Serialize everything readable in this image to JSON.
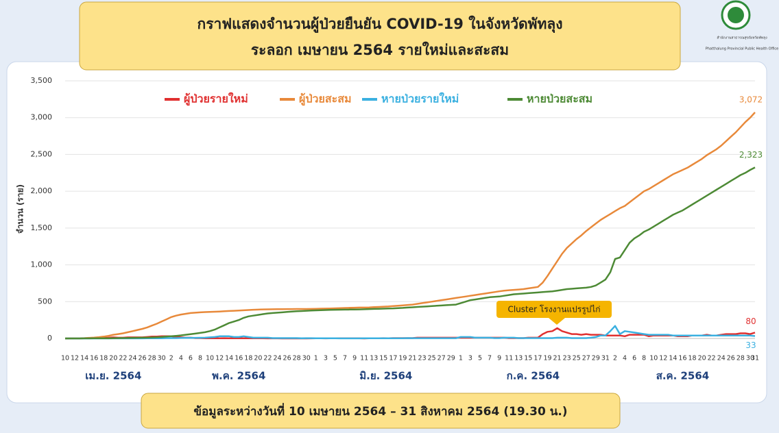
{
  "header": {
    "title_line1": "กราฟแสดงจำนวนผู้ป่วยยืนยัน COVID-19 ในจังหวัดพัทลุง",
    "title_line2": "ระลอก เมษายน 2564 รายใหม่และสะสม",
    "org_th": "สำนักงานสาธารณสุขจังหวัดพัทลุง",
    "org_en": "Phatthalung Provincial Public Health Office"
  },
  "footer": {
    "text": "ข้อมูลระหว่างวันที่ 10 เมษายน 2564 – 31 สิงหาคม 2564 (19.30 น.)"
  },
  "chart_data": {
    "type": "line",
    "ylabel": "จำนวน (ราย)",
    "annotation": "Cluster โรงงานแปรรูปไก่",
    "months": [
      "เม.ย. 2564",
      "พ.ค. 2564",
      "มิ.ย. 2564",
      "ก.ค. 2564",
      "ส.ค. 2564"
    ],
    "categories": [
      "10",
      null,
      "12",
      null,
      "14",
      null,
      "16",
      null,
      "18",
      null,
      "20",
      null,
      "22",
      null,
      "24",
      null,
      "26",
      null,
      "28",
      null,
      "30",
      null,
      "2",
      null,
      "4",
      null,
      "6",
      null,
      "8",
      null,
      "10",
      null,
      "12",
      null,
      "14",
      null,
      "16",
      null,
      "18",
      null,
      "20",
      null,
      "22",
      null,
      "24",
      null,
      "26",
      null,
      "28",
      null,
      "30",
      null,
      "1",
      null,
      "3",
      null,
      "5",
      null,
      "7",
      null,
      "9",
      null,
      "11",
      null,
      "13",
      null,
      "15",
      null,
      "17",
      null,
      "19",
      null,
      "21",
      null,
      "23",
      null,
      "25",
      null,
      "27",
      null,
      "29",
      null,
      "1",
      null,
      "3",
      null,
      "5",
      null,
      "7",
      null,
      "9",
      null,
      "11",
      null,
      "13",
      null,
      "15",
      null,
      "17",
      null,
      "19",
      null,
      "21",
      null,
      "23",
      null,
      "25",
      null,
      "27",
      null,
      "29",
      null,
      "31",
      null,
      "2",
      null,
      "4",
      null,
      "6",
      null,
      "8",
      null,
      "10",
      null,
      "12",
      null,
      "14",
      null,
      "16",
      null,
      "18",
      null,
      "20",
      null,
      "22",
      null,
      "24",
      null,
      "26",
      null,
      "28",
      null,
      "30",
      "31"
    ],
    "ylim": [
      0,
      3500
    ],
    "yticks": [
      0,
      500,
      {
        "value": 1000,
        "label": "1,000"
      },
      {
        "value": 1500,
        "label": "1,500"
      },
      {
        "value": 2000,
        "label": "2,000"
      },
      {
        "value": 2500,
        "label": "2,500"
      },
      {
        "value": 3000,
        "label": "3,000"
      },
      {
        "value": 3500,
        "label": "3,500"
      }
    ],
    "grid": true,
    "legend": "top",
    "series": [
      {
        "name": "ผู้ป่วยรายใหม่",
        "color": "#e03030",
        "values": [
          0,
          1,
          1,
          1,
          2,
          3,
          4,
          6,
          7,
          10,
          15,
          10,
          10,
          15,
          15,
          15,
          15,
          20,
          25,
          25,
          30,
          30,
          30,
          20,
          15,
          10,
          10,
          5,
          5,
          3,
          2,
          3,
          3,
          4,
          3,
          3,
          4,
          3,
          3,
          4,
          2,
          3,
          1,
          1,
          1,
          0,
          1,
          0,
          1,
          0,
          0,
          1,
          2,
          2,
          1,
          2,
          2,
          2,
          2,
          2,
          2,
          2,
          0,
          2,
          3,
          3,
          4,
          3,
          5,
          5,
          5,
          5,
          5,
          10,
          10,
          10,
          10,
          10,
          10,
          10,
          10,
          10,
          10,
          10,
          10,
          10,
          10,
          10,
          10,
          10,
          10,
          10,
          5,
          5,
          5,
          5,
          10,
          10,
          10,
          60,
          90,
          100,
          140,
          100,
          80,
          60,
          60,
          50,
          60,
          50,
          50,
          50,
          40,
          40,
          40,
          40,
          30,
          50,
          50,
          50,
          50,
          30,
          40,
          40,
          40,
          40,
          40,
          30,
          30,
          30,
          40,
          40,
          40,
          50,
          40,
          40,
          50,
          60,
          60,
          60,
          70,
          70,
          60,
          80
        ]
      },
      {
        "name": "ผู้ป่วยสะสม",
        "color": "#e8893a",
        "end_label": "3,072",
        "values": [
          0,
          1,
          2,
          3,
          5,
          8,
          12,
          18,
          25,
          35,
          50,
          60,
          70,
          85,
          100,
          115,
          130,
          150,
          175,
          200,
          230,
          260,
          290,
          310,
          325,
          335,
          345,
          350,
          355,
          358,
          360,
          363,
          366,
          370,
          373,
          376,
          380,
          383,
          386,
          390,
          392,
          395,
          396,
          397,
          398,
          398,
          399,
          399,
          400,
          400,
          400,
          401,
          403,
          405,
          406,
          408,
          410,
          412,
          414,
          416,
          418,
          420,
          420,
          422,
          425,
          428,
          432,
          435,
          440,
          445,
          450,
          455,
          460,
          470,
          480,
          490,
          500,
          510,
          520,
          530,
          540,
          550,
          560,
          570,
          580,
          590,
          600,
          610,
          620,
          630,
          640,
          650,
          655,
          660,
          665,
          670,
          680,
          690,
          700,
          760,
          850,
          950,
          1050,
          1150,
          1230,
          1290,
          1350,
          1400,
          1460,
          1510,
          1560,
          1610,
          1650,
          1690,
          1730,
          1770,
          1800,
          1850,
          1900,
          1950,
          2000,
          2030,
          2070,
          2110,
          2150,
          2190,
          2230,
          2260,
          2290,
          2320,
          2360,
          2400,
          2440,
          2490,
          2530,
          2570,
          2620,
          2680,
          2740,
          2800,
          2870,
          2940,
          3000,
          3072
        ]
      },
      {
        "name": "หายป่วยรายใหม่",
        "color": "#3ab0e0",
        "values": [
          0,
          0,
          0,
          0,
          1,
          0,
          1,
          0,
          1,
          0,
          1,
          1,
          1,
          1,
          1,
          1,
          1,
          2,
          2,
          3,
          3,
          5,
          5,
          5,
          7,
          8,
          8,
          8,
          9,
          10,
          15,
          20,
          30,
          30,
          30,
          20,
          20,
          30,
          20,
          10,
          10,
          10,
          10,
          5,
          5,
          5,
          5,
          5,
          5,
          2,
          4,
          4,
          2,
          2,
          2,
          2,
          2,
          1,
          1,
          1,
          1,
          1,
          2,
          2,
          2,
          2,
          2,
          2,
          2,
          3,
          3,
          5,
          4,
          4,
          4,
          4,
          4,
          4,
          4,
          4,
          4,
          4,
          20,
          20,
          20,
          10,
          10,
          10,
          10,
          5,
          5,
          10,
          10,
          10,
          5,
          5,
          5,
          5,
          5,
          5,
          5,
          5,
          10,
          10,
          10,
          5,
          5,
          5,
          5,
          10,
          20,
          40,
          40,
          100,
          170,
          60,
          100,
          90,
          80,
          70,
          60,
          50,
          50,
          50,
          50,
          50,
          40,
          40,
          40,
          40,
          40,
          40,
          40,
          40,
          40,
          40,
          40,
          40,
          40,
          40,
          40,
          40,
          40,
          33
        ]
      },
      {
        "name": "หายป่วยสะสม",
        "color": "#4d8a35",
        "end_label": "2,323",
        "values": [
          0,
          0,
          0,
          0,
          1,
          1,
          2,
          2,
          3,
          3,
          4,
          5,
          6,
          7,
          8,
          9,
          10,
          12,
          14,
          17,
          20,
          25,
          30,
          35,
          42,
          50,
          58,
          66,
          75,
          85,
          100,
          120,
          150,
          180,
          210,
          230,
          250,
          280,
          300,
          310,
          320,
          330,
          340,
          345,
          350,
          355,
          360,
          365,
          370,
          372,
          376,
          380,
          382,
          384,
          386,
          388,
          390,
          391,
          392,
          393,
          394,
          395,
          397,
          399,
          401,
          403,
          405,
          407,
          409,
          412,
          415,
          420,
          424,
          428,
          432,
          436,
          440,
          444,
          448,
          452,
          456,
          460,
          480,
          500,
          520,
          530,
          540,
          550,
          560,
          565,
          570,
          580,
          590,
          600,
          605,
          610,
          615,
          620,
          625,
          630,
          635,
          640,
          650,
          660,
          670,
          675,
          680,
          685,
          690,
          700,
          720,
          760,
          800,
          900,
          1080,
          1100,
          1200,
          1300,
          1360,
          1400,
          1450,
          1480,
          1520,
          1560,
          1600,
          1640,
          1680,
          1710,
          1740,
          1780,
          1820,
          1860,
          1900,
          1940,
          1980,
          2020,
          2060,
          2100,
          2140,
          2180,
          2220,
          2250,
          2290,
          2323
        ]
      }
    ]
  }
}
